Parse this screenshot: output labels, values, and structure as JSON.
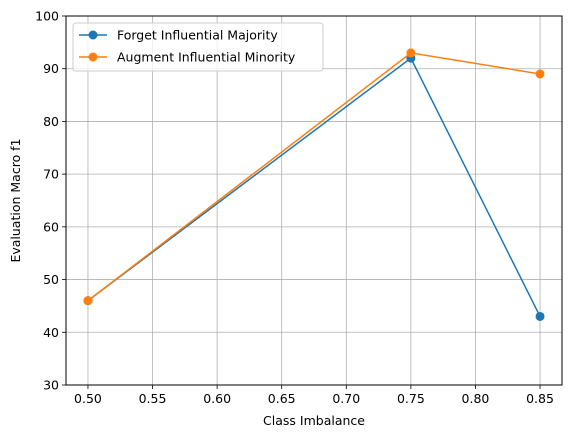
{
  "chart_data": {
    "type": "line",
    "xlabel": "Class Imbalance",
    "ylabel": "Evaluation Macro f1",
    "xlim": [
      0.483,
      0.867
    ],
    "ylim": [
      30,
      100
    ],
    "xticks": [
      0.5,
      0.55,
      0.6,
      0.65,
      0.7,
      0.75,
      0.8,
      0.85
    ],
    "xtick_labels": [
      "0.50",
      "0.55",
      "0.60",
      "0.65",
      "0.70",
      "0.75",
      "0.80",
      "0.85"
    ],
    "yticks": [
      30,
      40,
      50,
      60,
      70,
      80,
      90,
      100
    ],
    "ytick_labels": [
      "30",
      "40",
      "50",
      "60",
      "70",
      "80",
      "90",
      "100"
    ],
    "grid": true,
    "legend_position": "top-left",
    "series": [
      {
        "name": "Forget Influential Majority",
        "color": "#1f77b4",
        "marker": "circle",
        "x": [
          0.5,
          0.75,
          0.85
        ],
        "y": [
          46,
          92,
          43
        ]
      },
      {
        "name": "Augment Influential Minority",
        "color": "#ff7f0e",
        "marker": "circle",
        "x": [
          0.5,
          0.75,
          0.85
        ],
        "y": [
          46,
          93,
          89
        ]
      }
    ]
  }
}
